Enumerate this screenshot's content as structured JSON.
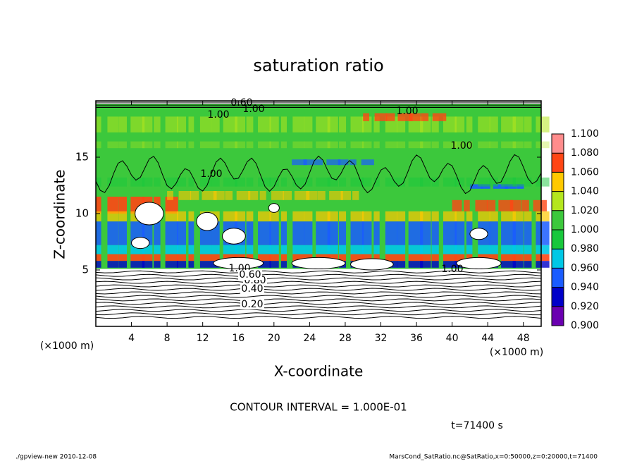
{
  "chart_data": {
    "type": "contour",
    "title": "saturation ratio",
    "x_label": "X-coordinate",
    "y_label": "Z-coordinate",
    "x_unit": "(×1000 m)",
    "y_unit": "(×1000 m)",
    "xlim": [
      0,
      50
    ],
    "ylim": [
      0,
      20
    ],
    "xticks": [
      4,
      8,
      12,
      16,
      20,
      24,
      28,
      32,
      36,
      40,
      44,
      48
    ],
    "yticks": [
      5,
      10,
      15
    ],
    "colorbar": {
      "levels": [
        {
          "value": 0.9,
          "label": "0.900"
        },
        {
          "value": 0.92,
          "label": "0.920"
        },
        {
          "value": 0.94,
          "label": "0.940"
        },
        {
          "value": 0.96,
          "label": "0.960"
        },
        {
          "value": 0.98,
          "label": "0.980"
        },
        {
          "value": 1.0,
          "label": "1.000"
        },
        {
          "value": 1.02,
          "label": "1.020"
        },
        {
          "value": 1.04,
          "label": "1.040"
        },
        {
          "value": 1.06,
          "label": "1.060"
        },
        {
          "value": 1.08,
          "label": "1.080"
        },
        {
          "value": 1.1,
          "label": "1.100"
        }
      ],
      "colors": [
        "#6a00b0",
        "#0000c8",
        "#1a5cff",
        "#00c8e6",
        "#18c83c",
        "#3cc83c",
        "#b4e61e",
        "#ffc800",
        "#ff4614",
        "#ff8c8c"
      ]
    },
    "contour_labels": [
      "0.60",
      "1.00",
      "1.00",
      "1.00",
      "1.00",
      "1.00",
      "1.00",
      "1.00",
      "0.80",
      "0.60",
      "0.40",
      "0.20"
    ],
    "contour_interval": "CONTOUR INTERVAL = 1.000E-01",
    "time": "t=71400 s",
    "footer_left": "./gpview-new   2010-12-08",
    "footer_right": "MarsCond_SatRatio.nc@SatRatio,x=0:50000,z=0:20000,t=71400"
  }
}
